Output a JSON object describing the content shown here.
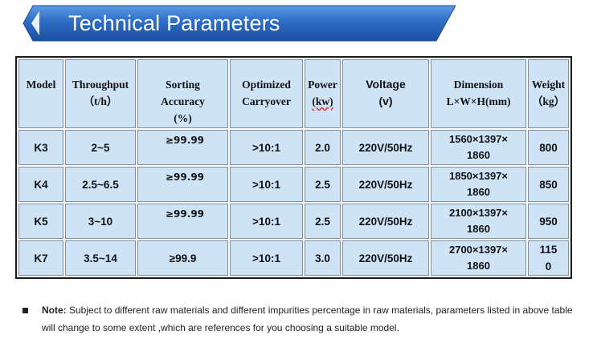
{
  "banner": {
    "title": "Technical Parameters"
  },
  "table": {
    "headers": {
      "model": "Model",
      "throughput": {
        "line1": "Throughput",
        "line2": "（t/h）"
      },
      "accuracy": {
        "line1": "Sorting",
        "line2": "Accuracy",
        "line3": "(%)"
      },
      "carryover": {
        "line1": "Optimized",
        "line2": "Carryover"
      },
      "power": {
        "line1": "Power",
        "line2": "(kw)"
      },
      "voltage": {
        "line1": "Voltage",
        "line2": "(v)"
      },
      "dimension": {
        "line1": "Dimension",
        "line2": "L×W×H(mm)"
      },
      "weight": {
        "line1": "Weight",
        "line2": "（kg）"
      }
    },
    "rows": [
      {
        "model": "K3",
        "throughput": "2~5",
        "accuracy": "≥99.99",
        "carryover": ">10:1",
        "power": "2.0",
        "voltage": "220V/50Hz",
        "dim1": "1560×1397×",
        "dim2": "1860",
        "weight": "800"
      },
      {
        "model": "K4",
        "throughput": "2.5~6.5",
        "accuracy": "≥99.99",
        "carryover": ">10:1",
        "power": "2.5",
        "voltage": "220V/50Hz",
        "dim1": "1850×1397×",
        "dim2": "1860",
        "weight": "850"
      },
      {
        "model": "K5",
        "throughput": "3~10",
        "accuracy": "≥99.99",
        "carryover": ">10:1",
        "power": "2.5",
        "voltage": "220V/50Hz",
        "dim1": "2100×1397×",
        "dim2": "1860",
        "weight": "950"
      },
      {
        "model": "K7",
        "throughput": "3.5~14",
        "accuracy": "≥99.9",
        "carryover": ">10:1",
        "power": "3.0",
        "voltage": "220V/50Hz",
        "dim1": "2700×1397×",
        "dim2": "1860",
        "weight1": "115",
        "weight2": "0"
      }
    ]
  },
  "note": {
    "label": "Note:",
    "line1": " Subject to  different raw materials and different impurities percentage in raw materials, parameters listed in above table",
    "line2": "will change to some extent ,which are references for you choosing a suitable model."
  },
  "colors": {
    "banner_dark": "#1e4fa3",
    "banner_light": "#3f86d8",
    "cell_fill": "#cfe3f7"
  }
}
